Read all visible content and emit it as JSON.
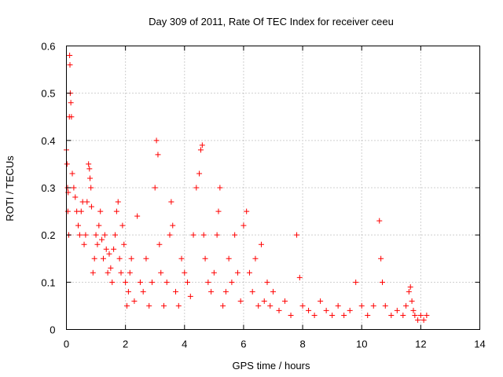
{
  "chart_data": {
    "type": "scatter",
    "title": "Day 309 of 2011, Rate Of TEC Index for receiver ceeu",
    "xlabel": "GPS time / hours",
    "ylabel": "ROTI / TECUs",
    "xlim": [
      0,
      14
    ],
    "ylim": [
      0,
      0.6
    ],
    "x_ticks": [
      "0",
      "2",
      "4",
      "6",
      "8",
      "10",
      "12",
      "14"
    ],
    "y_ticks": [
      "0",
      "0.1",
      "0.2",
      "0.3",
      "0.4",
      "0.5",
      "0.6"
    ],
    "grid": true,
    "marker": "+",
    "color": "#ff0000",
    "series": [
      {
        "x": [
          0.0,
          0.02,
          0.04,
          0.05,
          0.06,
          0.08,
          0.1,
          0.11,
          0.12,
          0.13,
          0.15,
          0.17,
          0.2,
          0.25,
          0.3,
          0.35,
          0.4,
          0.45,
          0.5,
          0.55,
          0.6,
          0.65,
          0.7,
          0.75,
          0.78,
          0.8,
          0.83,
          0.85,
          0.9,
          0.95,
          1.0,
          1.05,
          1.1,
          1.15,
          1.2,
          1.25,
          1.3,
          1.35,
          1.4,
          1.45,
          1.5,
          1.55,
          1.6,
          1.65,
          1.7,
          1.75,
          1.8,
          1.85,
          1.9,
          1.95,
          2.0,
          2.05,
          2.1,
          2.15,
          2.2,
          2.3,
          2.4,
          2.5,
          2.6,
          2.7,
          2.8,
          2.9,
          3.0,
          3.05,
          3.1,
          3.15,
          3.2,
          3.3,
          3.4,
          3.5,
          3.55,
          3.6,
          3.7,
          3.8,
          3.9,
          4.0,
          4.1,
          4.2,
          4.3,
          4.4,
          4.5,
          4.55,
          4.6,
          4.65,
          4.7,
          4.8,
          4.9,
          5.0,
          5.1,
          5.15,
          5.2,
          5.3,
          5.4,
          5.5,
          5.6,
          5.7,
          5.8,
          5.9,
          6.0,
          6.1,
          6.2,
          6.3,
          6.4,
          6.5,
          6.6,
          6.7,
          6.8,
          6.9,
          7.0,
          7.2,
          7.4,
          7.6,
          7.8,
          7.9,
          8.0,
          8.2,
          8.4,
          8.6,
          8.8,
          9.0,
          9.2,
          9.4,
          9.6,
          9.8,
          10.0,
          10.2,
          10.4,
          10.6,
          10.65,
          10.7,
          10.8,
          11.0,
          11.2,
          11.4,
          11.5,
          11.6,
          11.65,
          11.7,
          11.75,
          11.8,
          11.9,
          12.0,
          12.1,
          12.2
        ],
        "y": [
          0.38,
          0.35,
          0.3,
          0.25,
          0.29,
          0.2,
          0.45,
          0.58,
          0.56,
          0.5,
          0.48,
          0.45,
          0.33,
          0.3,
          0.28,
          0.25,
          0.22,
          0.2,
          0.25,
          0.27,
          0.18,
          0.2,
          0.27,
          0.35,
          0.34,
          0.32,
          0.3,
          0.26,
          0.12,
          0.15,
          0.2,
          0.18,
          0.22,
          0.25,
          0.19,
          0.15,
          0.2,
          0.17,
          0.12,
          0.16,
          0.13,
          0.1,
          0.17,
          0.2,
          0.25,
          0.27,
          0.15,
          0.12,
          0.22,
          0.18,
          0.1,
          0.05,
          0.08,
          0.12,
          0.15,
          0.06,
          0.24,
          0.1,
          0.08,
          0.15,
          0.05,
          0.1,
          0.3,
          0.4,
          0.37,
          0.18,
          0.12,
          0.05,
          0.1,
          0.2,
          0.27,
          0.22,
          0.08,
          0.05,
          0.15,
          0.12,
          0.1,
          0.07,
          0.2,
          0.3,
          0.33,
          0.38,
          0.39,
          0.2,
          0.15,
          0.1,
          0.08,
          0.12,
          0.2,
          0.25,
          0.3,
          0.05,
          0.08,
          0.15,
          0.1,
          0.2,
          0.12,
          0.06,
          0.22,
          0.25,
          0.12,
          0.08,
          0.15,
          0.05,
          0.18,
          0.06,
          0.1,
          0.05,
          0.08,
          0.04,
          0.06,
          0.03,
          0.2,
          0.11,
          0.05,
          0.04,
          0.03,
          0.06,
          0.04,
          0.03,
          0.05,
          0.03,
          0.04,
          0.1,
          0.05,
          0.03,
          0.05,
          0.23,
          0.15,
          0.1,
          0.05,
          0.03,
          0.04,
          0.03,
          0.05,
          0.08,
          0.09,
          0.06,
          0.04,
          0.03,
          0.02,
          0.03,
          0.02,
          0.03
        ]
      }
    ]
  }
}
